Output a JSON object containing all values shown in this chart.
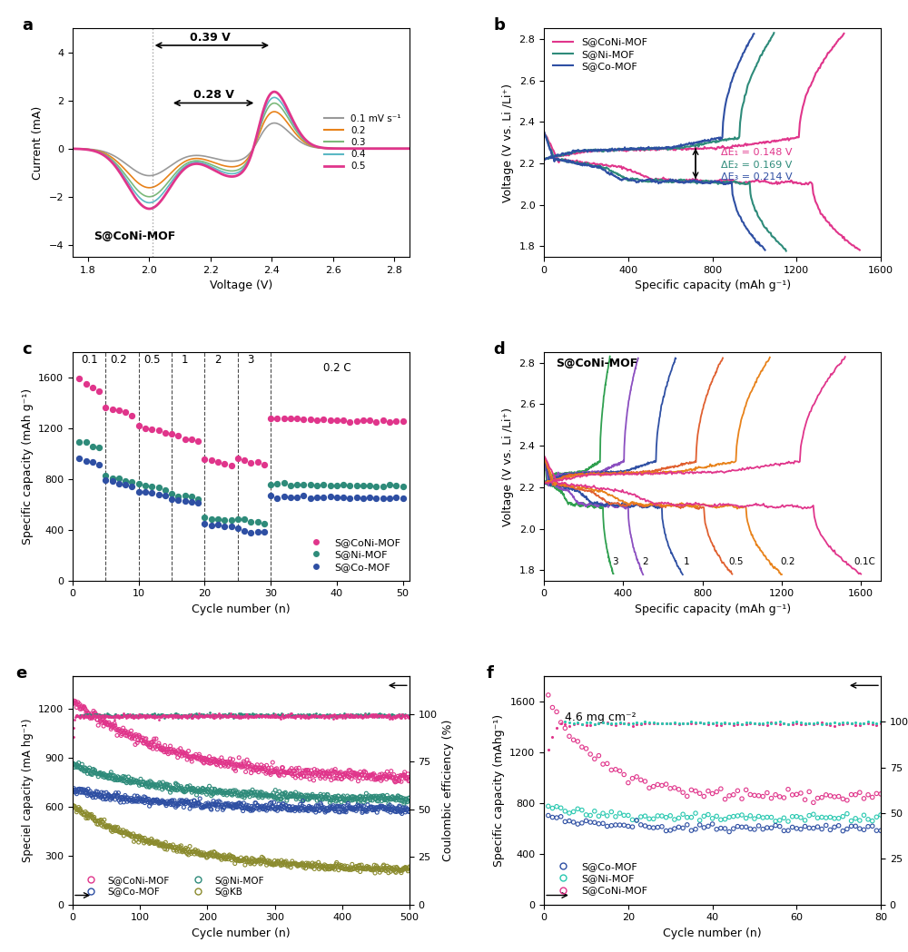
{
  "panel_labels": [
    "a",
    "b",
    "c",
    "d",
    "e",
    "f"
  ],
  "panel_a": {
    "xlabel": "Voltage (V)",
    "ylabel": "Current (mA)",
    "xlim": [
      1.75,
      2.85
    ],
    "ylim": [
      -4.5,
      5.0
    ],
    "xticks": [
      1.8,
      2.0,
      2.2,
      2.4,
      2.6,
      2.8
    ],
    "yticks": [
      -4,
      -2,
      0,
      2,
      4
    ],
    "label_text": "S@CoNi-MOF",
    "ann1_text": "0.39 V",
    "ann2_text": "0.28 V",
    "legend_labels": [
      "0.1 mV s⁻¹",
      "0.2",
      "0.3",
      "0.4",
      "0.5"
    ],
    "legend_colors": [
      "#999999",
      "#E8821A",
      "#7CB97A",
      "#5BB8C4",
      "#E0358B"
    ]
  },
  "panel_b": {
    "xlabel": "Specific capacity (mAh g⁻¹)",
    "ylabel": "Voltage (V vs. Li /Li⁺)",
    "xlim": [
      0,
      1600
    ],
    "ylim": [
      1.75,
      2.85
    ],
    "xticks": [
      0,
      400,
      800,
      1200,
      1600
    ],
    "yticks": [
      1.8,
      2.0,
      2.2,
      2.4,
      2.6,
      2.8
    ],
    "legend_labels": [
      "S@CoNi-MOF",
      "S@Ni-MOF",
      "S@Co-MOF"
    ],
    "legend_colors": [
      "#E0358B",
      "#2E8B7A",
      "#2E4FA3"
    ],
    "ann_E1": "ΔE₁ = 0.148 V",
    "ann_E2": "ΔE₂ = 0.169 V",
    "ann_E3": "ΔE₃ = 0.214 V"
  },
  "panel_c": {
    "xlabel": "Cycle number (n)",
    "ylabel": "Specific capacity (mAh g⁻¹)",
    "xlim": [
      0,
      51
    ],
    "ylim": [
      0,
      1800
    ],
    "xticks": [
      0,
      10,
      20,
      30,
      40,
      50
    ],
    "yticks": [
      0,
      400,
      800,
      1200,
      1600
    ],
    "legend_labels": [
      "S@CoNi-MOF",
      "S@Ni-MOF",
      "S@Co-MOF"
    ],
    "legend_colors": [
      "#E0358B",
      "#2E8B7A",
      "#2E4FA3"
    ],
    "rate_labels": [
      "0.1",
      "0.2",
      "0.5",
      "1",
      "2",
      "3",
      "0.2 C"
    ],
    "vline_positions": [
      5,
      10,
      15,
      20,
      25,
      30
    ]
  },
  "panel_d": {
    "xlabel": "Specific capacity (mAh g⁻¹)",
    "ylabel": "Voltage (V vs. Li /Li⁺)",
    "xlim": [
      0,
      1700
    ],
    "ylim": [
      1.75,
      2.85
    ],
    "xticks": [
      0,
      400,
      800,
      1200,
      1600
    ],
    "yticks": [
      1.8,
      2.0,
      2.2,
      2.4,
      2.6,
      2.8
    ],
    "label_text": "S@CoNi-MOF",
    "rate_labels": [
      "3",
      "2",
      "1",
      "0.5",
      "0.2",
      "0.1C"
    ],
    "curve_colors": [
      "#30A050",
      "#8B4FC0",
      "#2E4FA3",
      "#E06030",
      "#E8821A",
      "#E0358B"
    ],
    "cap_maxes": [
      350,
      500,
      700,
      950,
      1200,
      1600
    ]
  },
  "panel_e": {
    "xlabel": "Cycle number (n)",
    "ylabel_left": "Speciel capacity (mA hg⁻¹)",
    "ylabel_right": "Coulombic efficiency (%)",
    "xlim": [
      0,
      500
    ],
    "ylim_left": [
      0,
      1400
    ],
    "ylim_right": [
      0,
      120
    ],
    "xticks": [
      0,
      100,
      200,
      300,
      400,
      500
    ],
    "yticks_left": [
      0,
      300,
      600,
      900,
      1200
    ],
    "yticks_right": [
      0,
      25,
      50,
      75,
      100
    ],
    "legend_labels": [
      "S@CoNi-MOF",
      "S@Ni-MOF",
      "S@Co-MOF",
      "S@KB"
    ],
    "legend_colors": [
      "#E0358B",
      "#2E8B7A",
      "#2E4FA3",
      "#8B8B2E"
    ]
  },
  "panel_f": {
    "xlabel": "Cycle number (n)",
    "ylabel_left": "Specific capacity (mAhg⁻¹)",
    "ylabel_right": "Coulombic efficiency (%)",
    "xlim": [
      0,
      80
    ],
    "ylim_left": [
      0,
      1800
    ],
    "ylim_right": [
      0,
      125
    ],
    "xticks": [
      0,
      20,
      40,
      60,
      80
    ],
    "yticks_left": [
      0,
      400,
      800,
      1200,
      1600
    ],
    "yticks_right": [
      0,
      25,
      50,
      75,
      100
    ],
    "legend_labels": [
      "S@Co-MOF",
      "S@Ni-MOF",
      "S@CoNi-MOF"
    ],
    "legend_colors": [
      "#2E4FA3",
      "#28C8B0",
      "#E0358B"
    ],
    "ann_text": "4.6 mg cm⁻²"
  }
}
